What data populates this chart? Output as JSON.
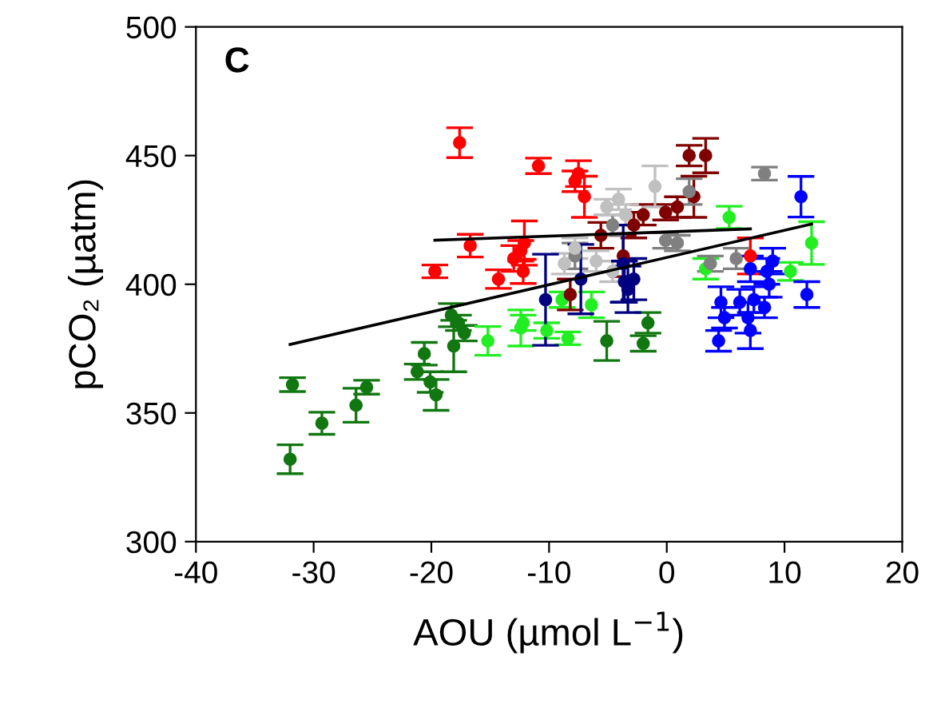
{
  "chart_data": {
    "type": "scatter",
    "xlabel": "AOU (µmol L$^{−1}$)",
    "ylabel": "pCO₂ (µatm)",
    "annotations": [
      "C"
    ],
    "xlim": [
      -40,
      20
    ],
    "xticks": [
      -40,
      -30,
      -20,
      -10,
      0,
      10,
      20
    ],
    "ylim": [
      300,
      500
    ],
    "yticks": [
      300,
      350,
      400,
      450,
      500
    ],
    "grid": false,
    "legend": false,
    "marker": "circle",
    "series": [
      {
        "color": "#117711",
        "x": [
          -31.8,
          -32.0,
          -29.3,
          -26.4,
          -25.5,
          -21.2,
          -20.6,
          -20.1,
          -19.6,
          -18.3,
          -17.7,
          -17.2,
          -18.1,
          -5.1,
          -1.6,
          -2.0
        ],
        "values": [
          361,
          332,
          346,
          353,
          360,
          366,
          373,
          362,
          357,
          388,
          385,
          381,
          376,
          378,
          385,
          377
        ],
        "errors": [
          2.7,
          5.6,
          4.3,
          6.6,
          2.7,
          3,
          4.4,
          4,
          6,
          4.5,
          3,
          3,
          10,
          7.6,
          4,
          3
        ]
      },
      {
        "color": "#22ee22",
        "x": [
          -15.2,
          -12.4,
          -12.2,
          -10.2,
          -8.4,
          -8.9,
          -6.4,
          5.3,
          12.3,
          10.5,
          3.3
        ],
        "values": [
          378,
          383,
          385,
          382,
          379,
          394,
          392,
          426,
          416,
          405,
          406
        ],
        "errors": [
          5.6,
          7,
          3,
          3,
          2.5,
          3,
          5,
          4.3,
          8.3,
          3.5,
          4
        ]
      },
      {
        "color": "#ff0000",
        "x": [
          -17.6,
          -10.9,
          -7.5,
          -7.8,
          -7.0,
          -16.7,
          -19.7,
          -14.3,
          -12.1,
          -13.0,
          -12.2,
          -12.4,
          7.1
        ],
        "values": [
          455,
          446,
          443,
          440,
          434,
          415,
          405,
          402,
          416,
          410,
          405,
          413,
          411
        ],
        "errors": [
          5.8,
          3,
          5,
          4,
          8,
          4.4,
          2.5,
          3.6,
          8.6,
          5,
          4.7,
          4,
          7
        ]
      },
      {
        "color": "#800000",
        "x": [
          1.9,
          3.3,
          2.3,
          0.9,
          -0.1,
          -2.0,
          -2.8,
          -3.7,
          -8.2,
          -5.6
        ],
        "values": [
          450,
          450,
          434,
          430,
          428,
          427,
          423,
          411,
          396,
          419
        ],
        "errors": [
          4,
          6.7,
          8,
          4,
          3,
          4,
          5,
          8,
          6,
          5
        ]
      },
      {
        "color": "#808080",
        "x": [
          8.3,
          1.9,
          5.9,
          3.7,
          -0.1,
          0.9,
          -4.6,
          -7.8
        ],
        "values": [
          443,
          436,
          410,
          408,
          417,
          416,
          423,
          411
        ],
        "errors": [
          2.5,
          5,
          4,
          3,
          3,
          3,
          4,
          5
        ]
      },
      {
        "color": "#c0c0c0",
        "x": [
          -1.0,
          -4.1,
          -5.1,
          -3.5,
          -7.8,
          -8.7,
          -6.0,
          -4.6
        ],
        "values": [
          438,
          433,
          430,
          427,
          414,
          408,
          409,
          405
        ],
        "errors": [
          8,
          4,
          3,
          4,
          4,
          4,
          4,
          4
        ]
      },
      {
        "color": "#000080",
        "x": [
          -10.3,
          -7.3,
          -3.7,
          -3.6,
          -2.8,
          -3.3
        ],
        "values": [
          394,
          402,
          408,
          401,
          402,
          398
        ],
        "errors": [
          17.7,
          13.5,
          15,
          8,
          8,
          9
        ]
      },
      {
        "color": "#0000ff",
        "x": [
          11.4,
          9.0,
          4.6,
          4.9,
          4.4,
          6.9,
          6.2,
          7.4,
          8.3,
          8.5,
          8.7,
          7.1,
          11.9,
          7.1
        ],
        "values": [
          434,
          409,
          393,
          387,
          378,
          387,
          393,
          394,
          391,
          405,
          400,
          406,
          396,
          382
        ],
        "errors": [
          7.9,
          5,
          6,
          4,
          4,
          6,
          5,
          5,
          4,
          5,
          5,
          5,
          5,
          7
        ]
      },
      {
        "type": "line",
        "color": "#000000",
        "marker": "none",
        "x": [
          -32,
          12.3
        ],
        "values": [
          376.6,
          423.4
        ]
      },
      {
        "type": "line",
        "color": "#000000",
        "marker": "none",
        "x": [
          -19.7,
          7.1
        ],
        "values": [
          417.1,
          421.5
        ]
      }
    ]
  }
}
